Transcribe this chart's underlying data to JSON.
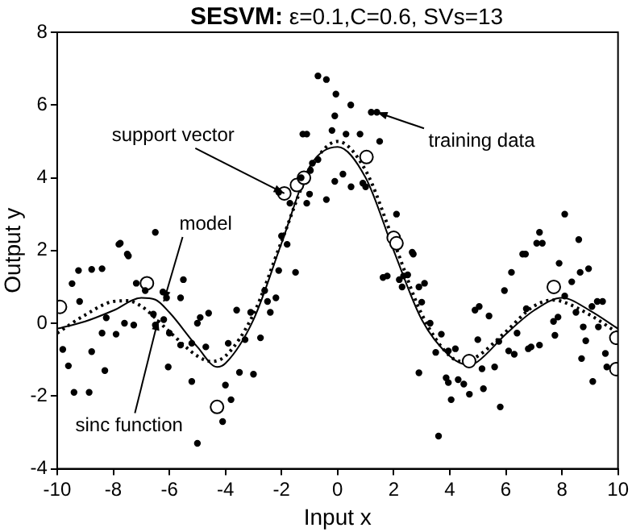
{
  "chart_data": {
    "type": "scatter",
    "title": "SESVM: ε=0.1,C=0.6, SVs=13",
    "xlabel": "Input x",
    "ylabel": "Output y",
    "xlim": [
      -10,
      10
    ],
    "xticks": [
      -10,
      -8,
      -6,
      -4,
      -2,
      0,
      2,
      4,
      6,
      8,
      10
    ],
    "ylim": [
      -4,
      8
    ],
    "yticks": [
      -4,
      -2,
      0,
      2,
      4,
      6,
      8
    ],
    "grid": false,
    "legend": false,
    "series": [
      {
        "type": "scatter",
        "marker": "circle",
        "color": "#000000",
        "x": [
          -9.24,
          -8.77,
          -8.4,
          -9.47,
          -9.2,
          -9.8,
          -9.6,
          -9.4,
          -8.86,
          -8.77,
          -8.4,
          -8.3,
          -8.25,
          -7.9,
          -7.6,
          -7.46,
          -7.8,
          -7.18,
          -7.27,
          -6.86,
          -6.57,
          -6.5,
          -6.23,
          -6.1,
          -6.2,
          -6.0,
          -6.04,
          -5.6,
          -5.5,
          -5.6,
          -5.2,
          -5.2,
          -5.0,
          -4.9,
          -5.0,
          -4.6,
          -4.7,
          -4.1,
          -4.0,
          -3.9,
          -3.8,
          -3.6,
          -3.5,
          -3.3,
          -3.1,
          -3.0,
          -2.75,
          -2.6,
          -2.5,
          -2.4,
          -2.2,
          -2.1,
          -1.5,
          -1.8,
          -7.75,
          -7.5,
          -6.5,
          -1.24,
          -2.1,
          -1.3,
          -0.97,
          -1.7,
          -2.0,
          -1.1,
          -0.7,
          -0.4,
          -0.06,
          0.47,
          -0.1,
          1.2,
          1.4,
          -1.1,
          -0.2,
          0.3,
          0.8,
          1.5,
          -0.9,
          -0.7,
          -0.4,
          -0.1,
          0.19,
          0.48,
          0.9,
          1.0,
          -1.0,
          2.1,
          2.7,
          6.7,
          7.1,
          7.2,
          7.3,
          8.1,
          8.6,
          1.62,
          1.77,
          2.2,
          2.35,
          2.5,
          2.66,
          2.3,
          2.9,
          3.1,
          3.0,
          3.3,
          3.5,
          2.9,
          3.7,
          3.95,
          4.2,
          3.87,
          3.95,
          4.05,
          4.3,
          3.6,
          4.5,
          4.7,
          4.9,
          5.05,
          5.0,
          5.15,
          5.2,
          5.4,
          5.6,
          5.75,
          5.8,
          5.95,
          6.1,
          6.2,
          6.3,
          6.4,
          6.6,
          6.73,
          6.8,
          6.9,
          7.2,
          7.9,
          7.7,
          7.86,
          8.1,
          7.75,
          8.35,
          8.5,
          8.65,
          8.95,
          8.76,
          8.7,
          8.85,
          9.07,
          9.26,
          9.1,
          9.3,
          9.45,
          9.55,
          9.6
        ],
        "values": [
          1.45,
          1.48,
          1.5,
          1.09,
          0.6,
          -0.72,
          -1.17,
          -1.9,
          -1.9,
          -0.78,
          -0.27,
          -1.3,
          0.15,
          -0.3,
          0.0,
          1.85,
          2.17,
          1.1,
          -0.05,
          0.9,
          0.25,
          -0.05,
          0.86,
          0.7,
          0.1,
          -0.27,
          -1.2,
          0.7,
          1.2,
          -0.6,
          -1.6,
          -0.55,
          0.0,
          0.16,
          -3.3,
          0.28,
          -0.65,
          -2.7,
          -1.7,
          -0.55,
          -2.1,
          0.36,
          -1.35,
          -0.45,
          0.3,
          -1.4,
          -0.4,
          0.9,
          0.6,
          0.3,
          0.7,
          1.45,
          1.4,
          2.17,
          2.2,
          1.9,
          2.5,
          5.2,
          3.6,
          4.0,
          4.2,
          3.3,
          2.4,
          3.3,
          6.8,
          6.7,
          6.3,
          6.0,
          5.7,
          5.8,
          5.8,
          5.2,
          5.3,
          5.2,
          5.2,
          5.0,
          4.4,
          4.5,
          3.4,
          3.9,
          4.1,
          3.75,
          3.85,
          3.75,
          3.55,
          3.0,
          1.9,
          1.9,
          2.2,
          2.5,
          2.2,
          3.0,
          2.3,
          1.26,
          1.3,
          1.2,
          1.3,
          1.33,
          1.95,
          1.0,
          1.0,
          1.1,
          0.58,
          0.0,
          -0.8,
          -1.36,
          -0.3,
          -0.76,
          -0.7,
          -1.5,
          -1.63,
          -2.1,
          -1.55,
          -3.1,
          -1.67,
          -1.95,
          0.36,
          0.46,
          -0.45,
          -1.25,
          -1.8,
          0.2,
          -1.2,
          -0.5,
          -2.3,
          0.9,
          -0.76,
          1.4,
          -0.85,
          -0.27,
          1.9,
          0.4,
          -0.7,
          -0.65,
          -0.6,
          1.65,
          0.05,
          0.17,
          0.75,
          -0.33,
          1.14,
          0.3,
          1.4,
          1.5,
          -0.1,
          -0.97,
          -0.48,
          0.46,
          0.6,
          -1.6,
          -0.1,
          0.6,
          -0.83,
          -1.2
        ]
      },
      {
        "type": "scatter",
        "marker": "circle",
        "color": "#000000",
        "x": [
          -9.9,
          -6.8,
          -4.3,
          -1.9,
          -1.45,
          -1.2,
          1.03,
          2.0,
          2.1,
          4.69,
          7.71,
          9.94,
          9.94
        ],
        "values": [
          0.45,
          1.1,
          -2.3,
          3.57,
          3.8,
          4.0,
          4.57,
          2.35,
          2.2,
          -1.04,
          1.0,
          -0.4,
          -1.26
        ]
      },
      {
        "type": "line",
        "marker": "none",
        "line_style": "solid",
        "color": "#000000",
        "x": [
          -10,
          -9,
          -8,
          -7,
          -6.5,
          -6,
          -5,
          -4.3,
          -4,
          -3,
          -2,
          -1,
          0,
          1,
          2,
          3,
          4,
          4.7,
          5,
          6,
          7,
          8,
          9,
          10
        ],
        "values": [
          -0.15,
          0.05,
          0.35,
          0.7,
          0.65,
          0.3,
          -0.65,
          -1.2,
          -1.1,
          0.1,
          2.2,
          4.3,
          4.85,
          4.0,
          2.0,
          0.1,
          -0.9,
          -1.15,
          -1.05,
          -0.3,
          0.35,
          0.7,
          0.35,
          -0.15
        ]
      },
      {
        "type": "line",
        "marker": "none",
        "line_style": "dotted",
        "color": "#000000",
        "x": [
          -10,
          -9,
          -8,
          -7.5,
          -7,
          -6,
          -5,
          -4.5,
          -4,
          -3,
          -2,
          -1,
          0,
          1,
          2,
          3,
          4,
          4.5,
          5,
          6,
          7,
          7.7,
          8,
          9,
          10
        ],
        "values": [
          -0.27,
          0.23,
          0.6,
          0.62,
          0.47,
          -0.23,
          -0.9,
          -1.05,
          -0.9,
          0.25,
          2.25,
          4.2,
          5,
          4.2,
          2.25,
          0.25,
          -0.9,
          -1.05,
          -0.9,
          -0.23,
          0.47,
          0.64,
          0.6,
          0.23,
          -0.27
        ]
      }
    ],
    "annotations": [
      {
        "text": "support vector",
        "x": -1.9,
        "y": 3.57
      },
      {
        "text": "training data",
        "x": 1.4,
        "y": 5.8
      },
      {
        "text": "model",
        "x": -6.2,
        "y": 0.6
      },
      {
        "text": "sinc function",
        "x": -6.4,
        "y": 0.1
      }
    ]
  }
}
